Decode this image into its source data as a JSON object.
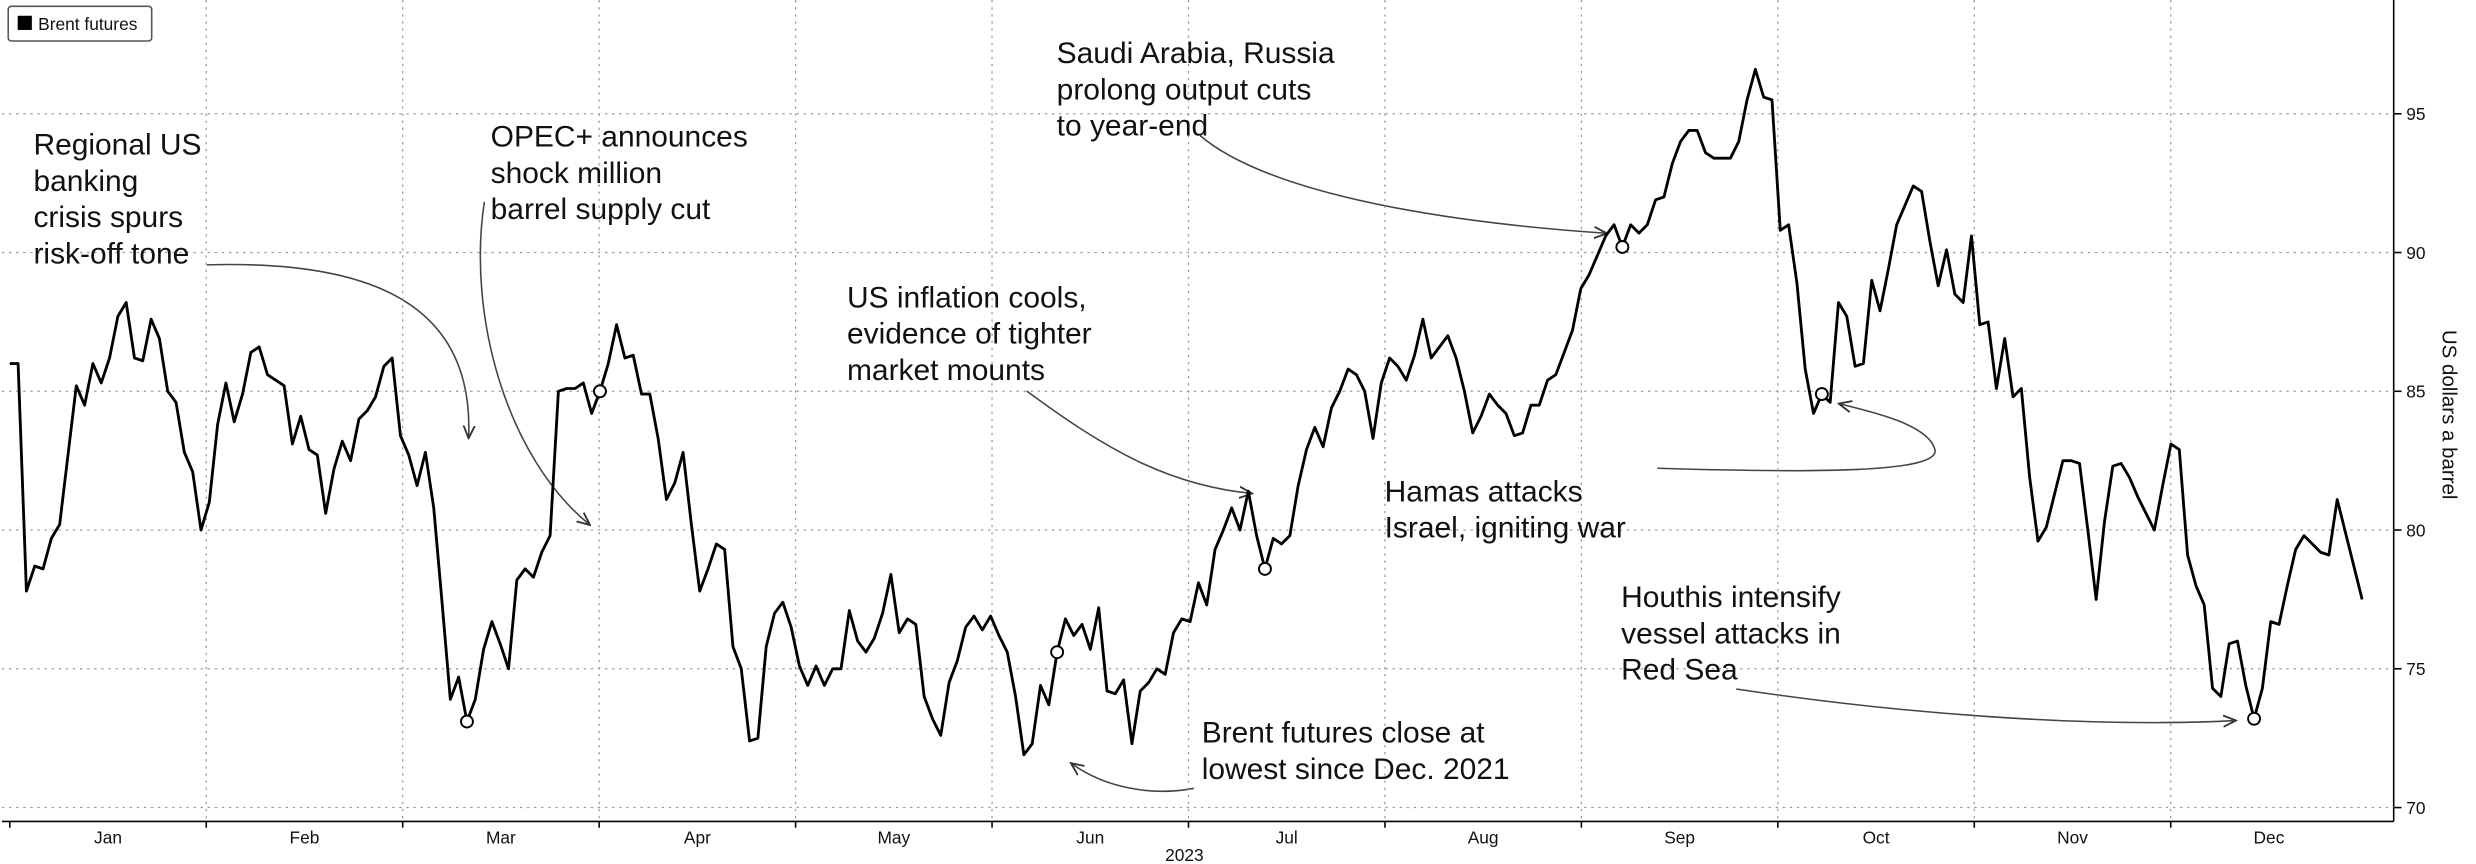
{
  "chart_data": {
    "type": "line",
    "series": [
      {
        "name": "Brent futures",
        "color": "#000000",
        "values": [
          86.0,
          86.0,
          77.8,
          78.7,
          78.6,
          79.7,
          80.2,
          82.7,
          85.2,
          84.5,
          86.0,
          85.3,
          86.2,
          87.7,
          88.2,
          86.2,
          86.1,
          87.6,
          86.9,
          85.0,
          84.6,
          82.8,
          82.1,
          80.0,
          81.0,
          83.8,
          85.3,
          83.9,
          84.9,
          86.4,
          86.6,
          85.6,
          85.4,
          85.2,
          83.1,
          84.1,
          82.9,
          82.7,
          80.6,
          82.2,
          83.2,
          82.5,
          84.0,
          84.3,
          84.8,
          85.9,
          86.2,
          83.4,
          82.7,
          81.6,
          82.8,
          80.8,
          77.4,
          73.9,
          74.7,
          73.1,
          73.9,
          75.7,
          76.7,
          75.9,
          75.0,
          78.2,
          78.6,
          78.3,
          79.2,
          79.8,
          85.0,
          85.1,
          85.1,
          85.3,
          84.2,
          85.0,
          86.0,
          87.4,
          86.2,
          86.3,
          84.9,
          84.9,
          83.3,
          81.1,
          81.7,
          82.8,
          80.2,
          77.8,
          78.6,
          79.5,
          79.3,
          75.8,
          75.0,
          72.4,
          72.5,
          75.8,
          77.0,
          77.4,
          76.5,
          75.1,
          74.4,
          75.1,
          74.4,
          75.0,
          75.0,
          77.1,
          76.0,
          75.6,
          76.1,
          77.0,
          78.4,
          76.3,
          76.8,
          76.6,
          74.0,
          73.2,
          72.6,
          74.5,
          75.3,
          76.5,
          76.9,
          76.4,
          76.9,
          76.2,
          75.6,
          74.0,
          71.9,
          72.3,
          74.4,
          73.7,
          75.6,
          76.8,
          76.2,
          76.6,
          75.7,
          77.2,
          74.2,
          74.1,
          74.6,
          72.3,
          74.2,
          74.5,
          75.0,
          74.8,
          76.3,
          76.8,
          76.7,
          78.1,
          77.3,
          79.3,
          80.0,
          80.8,
          80.0,
          81.4,
          79.8,
          78.6,
          79.7,
          79.5,
          79.8,
          81.6,
          82.9,
          83.7,
          83.0,
          84.4,
          85.0,
          85.8,
          85.6,
          85.0,
          83.3,
          85.3,
          86.2,
          85.9,
          85.4,
          86.3,
          87.6,
          86.2,
          86.6,
          87.0,
          86.2,
          85.0,
          83.5,
          84.1,
          84.9,
          84.5,
          84.2,
          83.4,
          83.5,
          84.5,
          84.5,
          85.4,
          85.6,
          86.4,
          87.2,
          88.7,
          89.2,
          89.9,
          90.6,
          91.0,
          90.2,
          91.0,
          90.7,
          91.0,
          91.9,
          92.0,
          93.2,
          94.0,
          94.4,
          94.4,
          93.6,
          93.4,
          93.4,
          93.4,
          94.0,
          95.5,
          96.6,
          95.6,
          95.5,
          90.8,
          91.0,
          88.9,
          85.8,
          84.2,
          84.9,
          84.6,
          88.2,
          87.7,
          85.9,
          86.0,
          89.0,
          87.9,
          89.4,
          91.0,
          91.7,
          92.4,
          92.2,
          90.4,
          88.8,
          90.1,
          88.5,
          88.2,
          90.6,
          87.4,
          87.5,
          85.1,
          86.9,
          84.8,
          85.1,
          81.9,
          79.6,
          80.1,
          81.3,
          82.5,
          82.5,
          82.4,
          80.0,
          77.5,
          80.3,
          82.3,
          82.4,
          81.9,
          81.2,
          80.6,
          80.0,
          81.6,
          83.1,
          82.9,
          79.1,
          78.0,
          77.3,
          74.3,
          74.0,
          75.9,
          76.0,
          74.4,
          73.2,
          74.3,
          76.7,
          76.6,
          78.0,
          79.3,
          79.8,
          79.5,
          79.2,
          79.1,
          81.1,
          79.9,
          78.7,
          77.5
        ]
      }
    ],
    "months": [
      "Jan",
      "Feb",
      "Mar",
      "Apr",
      "May",
      "Jun",
      "Jul",
      "Aug",
      "Sep",
      "Oct",
      "Nov",
      "Dec"
    ],
    "xlabel": "2023",
    "ylabel": "US dollars a barrel",
    "ylim": [
      69.5,
      99.1
    ],
    "yticks": [
      70,
      75,
      80,
      85,
      90,
      95
    ],
    "grid": true,
    "legend": "upper left",
    "annotations": [
      [
        "Regional US",
        "banking",
        "crisis spurs",
        "risk-off tone"
      ],
      [
        "OPEC+ announces",
        "shock million",
        "barrel supply cut"
      ],
      [
        "US inflation cools,",
        "evidence of tighter",
        "market mounts"
      ],
      [
        "Saudi Arabia, Russia",
        "prolong output cuts",
        "to year-end"
      ],
      [
        "Hamas attacks",
        "Israel, igniting war"
      ],
      [
        "Houthis intensify",
        "vessel attacks in",
        "Red Sea"
      ],
      [
        "Brent futures close at",
        "lowest since Dec. 2021"
      ]
    ]
  }
}
